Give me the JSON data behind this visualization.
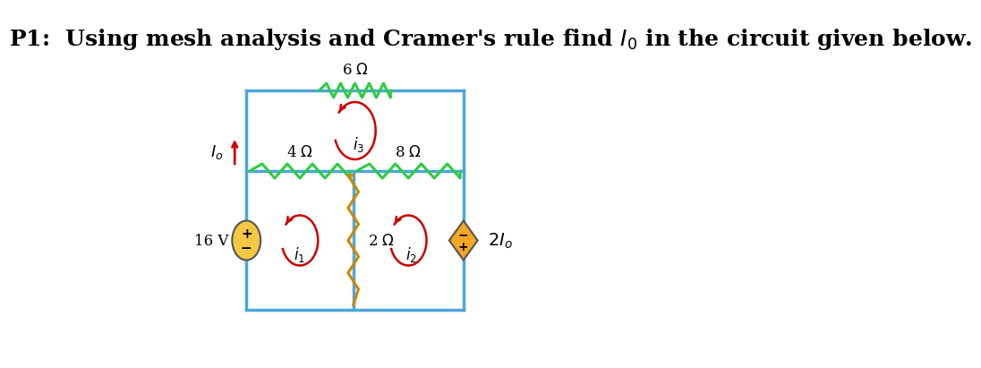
{
  "title": "P1:  Using mesh analysis and Cramer’s rule find $I_0$ in the circuit given below.",
  "title_fontsize": 18,
  "bg_color": "#ffffff",
  "circuit_color": "#4da6d9",
  "resistor_color": "#2ecc40",
  "zigzag_color": "#2ecc40",
  "source_color": "#f5c842",
  "dep_source_color": "#f5a623",
  "arrow_color": "#cc0000",
  "text_color": "#000000",
  "wire_lw": 2.5,
  "resistor_lw": 2.2
}
